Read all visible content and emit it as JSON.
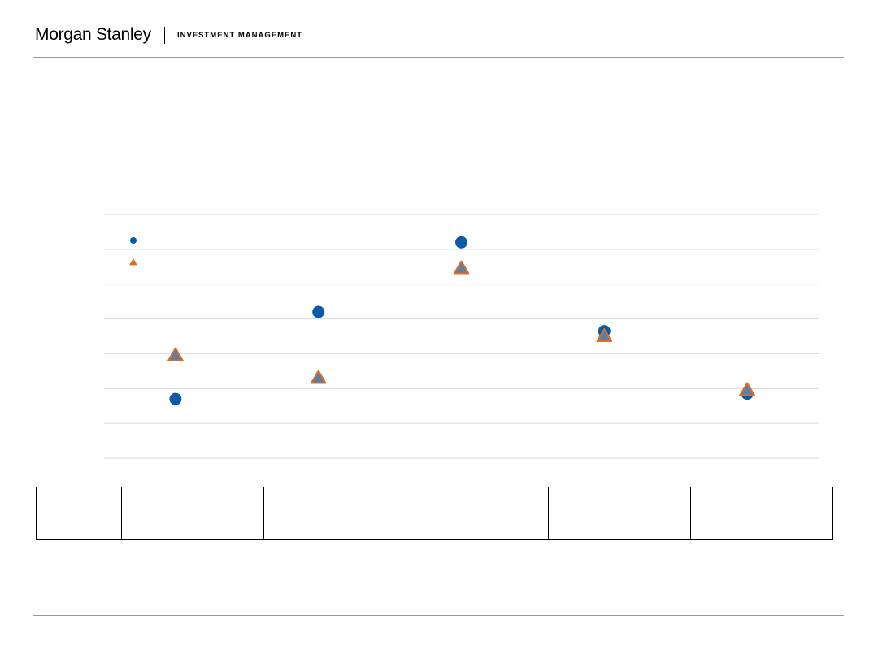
{
  "header": {
    "brand": "Morgan Stanley",
    "division": "INVESTMENT MANAGEMENT"
  },
  "colors": {
    "series_circle": "#0b5aa6",
    "series_triangle_fill": "#5f7e9d",
    "series_triangle_stroke": "#e06b26",
    "gridline": "#d9d9d9",
    "rule": "#9a9a9a"
  },
  "chart_data": {
    "type": "scatter",
    "title": "",
    "xlabel": "",
    "ylabel": "",
    "categories_count": 5,
    "ylim": [
      0,
      7
    ],
    "grid": true,
    "legend": "top-left",
    "series": [
      {
        "marker": "circle",
        "values": [
          1.7,
          4.2,
          6.2,
          3.65,
          1.85
        ]
      },
      {
        "marker": "triangle",
        "values": [
          2.95,
          2.3,
          5.45,
          3.5,
          1.95
        ]
      }
    ]
  },
  "table": {
    "columns": 6
  }
}
